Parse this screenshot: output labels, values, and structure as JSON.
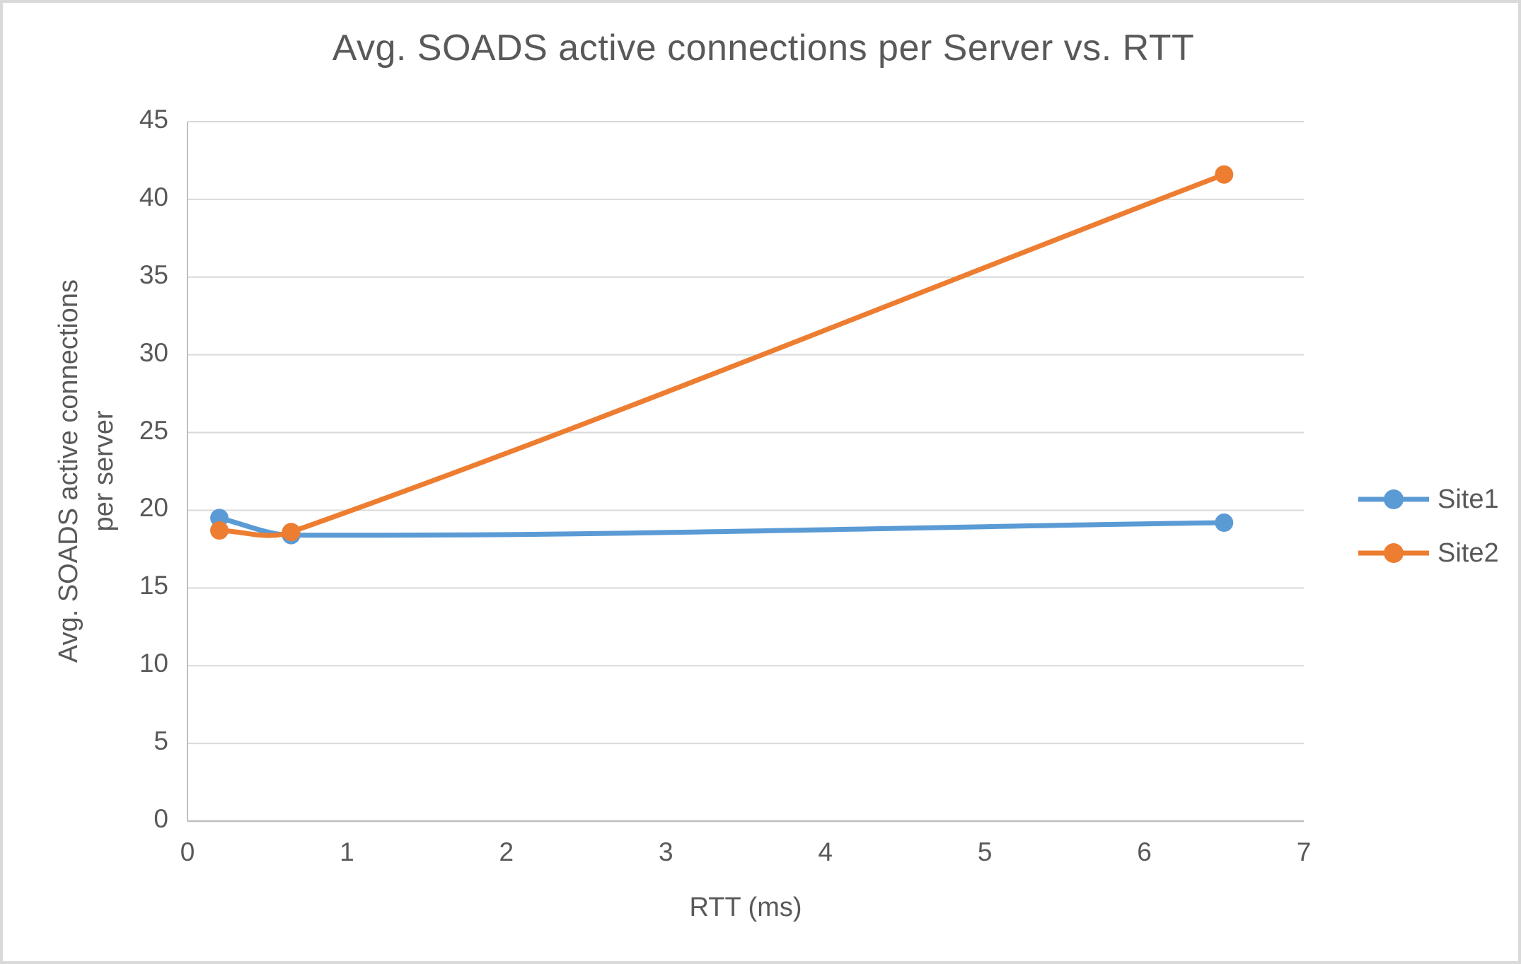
{
  "chart_data": {
    "type": "line",
    "title": "Avg. SOADS active connections per Server vs. RTT",
    "xlabel": "RTT (ms)",
    "ylabel": "Avg. SOADS active connections per server",
    "ylabel_lines": [
      "Avg. SOADS active connections",
      "per server"
    ],
    "x": [
      0.2,
      0.65,
      6.5
    ],
    "series": [
      {
        "name": "Site1",
        "color": "#5B9BD5",
        "values": [
          19.5,
          18.4,
          19.2
        ]
      },
      {
        "name": "Site2",
        "color": "#ED7D31",
        "values": [
          18.7,
          18.6,
          41.6
        ]
      }
    ],
    "xlim": [
      0,
      7
    ],
    "xtick_step": 1,
    "ylim": [
      0,
      45
    ],
    "ytick_step": 5,
    "grid": "horizontal",
    "smoothed": true,
    "legend_position": "right",
    "colors": {
      "text": "#595959",
      "gridline": "#D9D9D9",
      "axis_line": "#BFBFBF",
      "frame_border": "#D9D9D9",
      "background": "#FFFFFF"
    }
  }
}
